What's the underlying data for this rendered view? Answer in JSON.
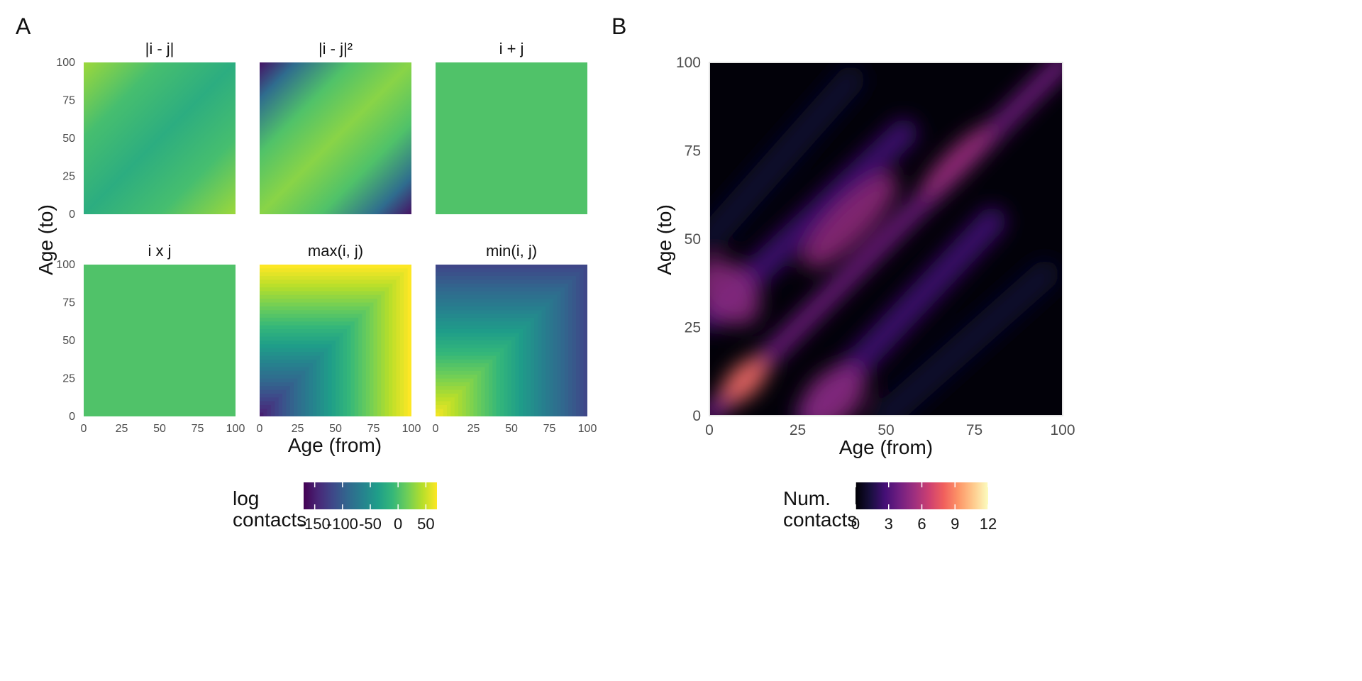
{
  "panel_labels": {
    "a": "A",
    "b": "B"
  },
  "colors": {
    "viridis": [
      "#440154",
      "#482878",
      "#3e4989",
      "#31688e",
      "#26828e",
      "#1f9e89",
      "#35b779",
      "#6ece58",
      "#b5de2b",
      "#fde725"
    ],
    "inferno": [
      "#000004",
      "#1b0c41",
      "#4a0c6b",
      "#781c6d",
      "#a52c60",
      "#cf4446",
      "#ed6925",
      "#fb9b06",
      "#f7d13d",
      "#fcffa4"
    ],
    "magma": [
      "#000004",
      "#180f3d",
      "#440f76",
      "#721f81",
      "#9e2f7f",
      "#cd4071",
      "#f1605d",
      "#fd9668",
      "#feca8d",
      "#fcfdbf"
    ]
  },
  "chart_data": [
    {
      "type": "heatmap",
      "facets": [
        "|i - j|",
        "|i - j|²",
        "i + j",
        "i x j",
        "max(i, j)",
        "min(i, j)"
      ],
      "xlabel": "Age (from)",
      "ylabel": "Age (to)",
      "xlim": [
        0,
        100
      ],
      "ylim": [
        0,
        100
      ],
      "xticks": [
        0,
        25,
        50,
        75,
        100
      ],
      "yticks": [
        0,
        25,
        50,
        75,
        100
      ],
      "colorscale": "viridis",
      "legend": {
        "title_lines": [
          "log",
          "contacts"
        ],
        "range": [
          -170,
          70
        ],
        "ticks": [
          -150,
          -100,
          -50,
          0,
          50
        ],
        "tick_labels": [
          "-150",
          "-100",
          "-50",
          "0",
          "50"
        ]
      }
    },
    {
      "type": "heatmap",
      "xlabel": "Age (from)",
      "ylabel": "Age (to)",
      "xlim": [
        0,
        100
      ],
      "ylim": [
        0,
        100
      ],
      "xticks": [
        0,
        25,
        50,
        75,
        100
      ],
      "yticks": [
        0,
        25,
        50,
        75,
        100
      ],
      "colorscale": "magma",
      "legend": {
        "title_lines": [
          "Num.",
          "contacts"
        ],
        "range": [
          0,
          12
        ],
        "ticks": [
          0,
          3,
          6,
          9,
          12
        ],
        "tick_labels": [
          "0",
          "3",
          "6",
          "9",
          "12"
        ]
      }
    }
  ]
}
